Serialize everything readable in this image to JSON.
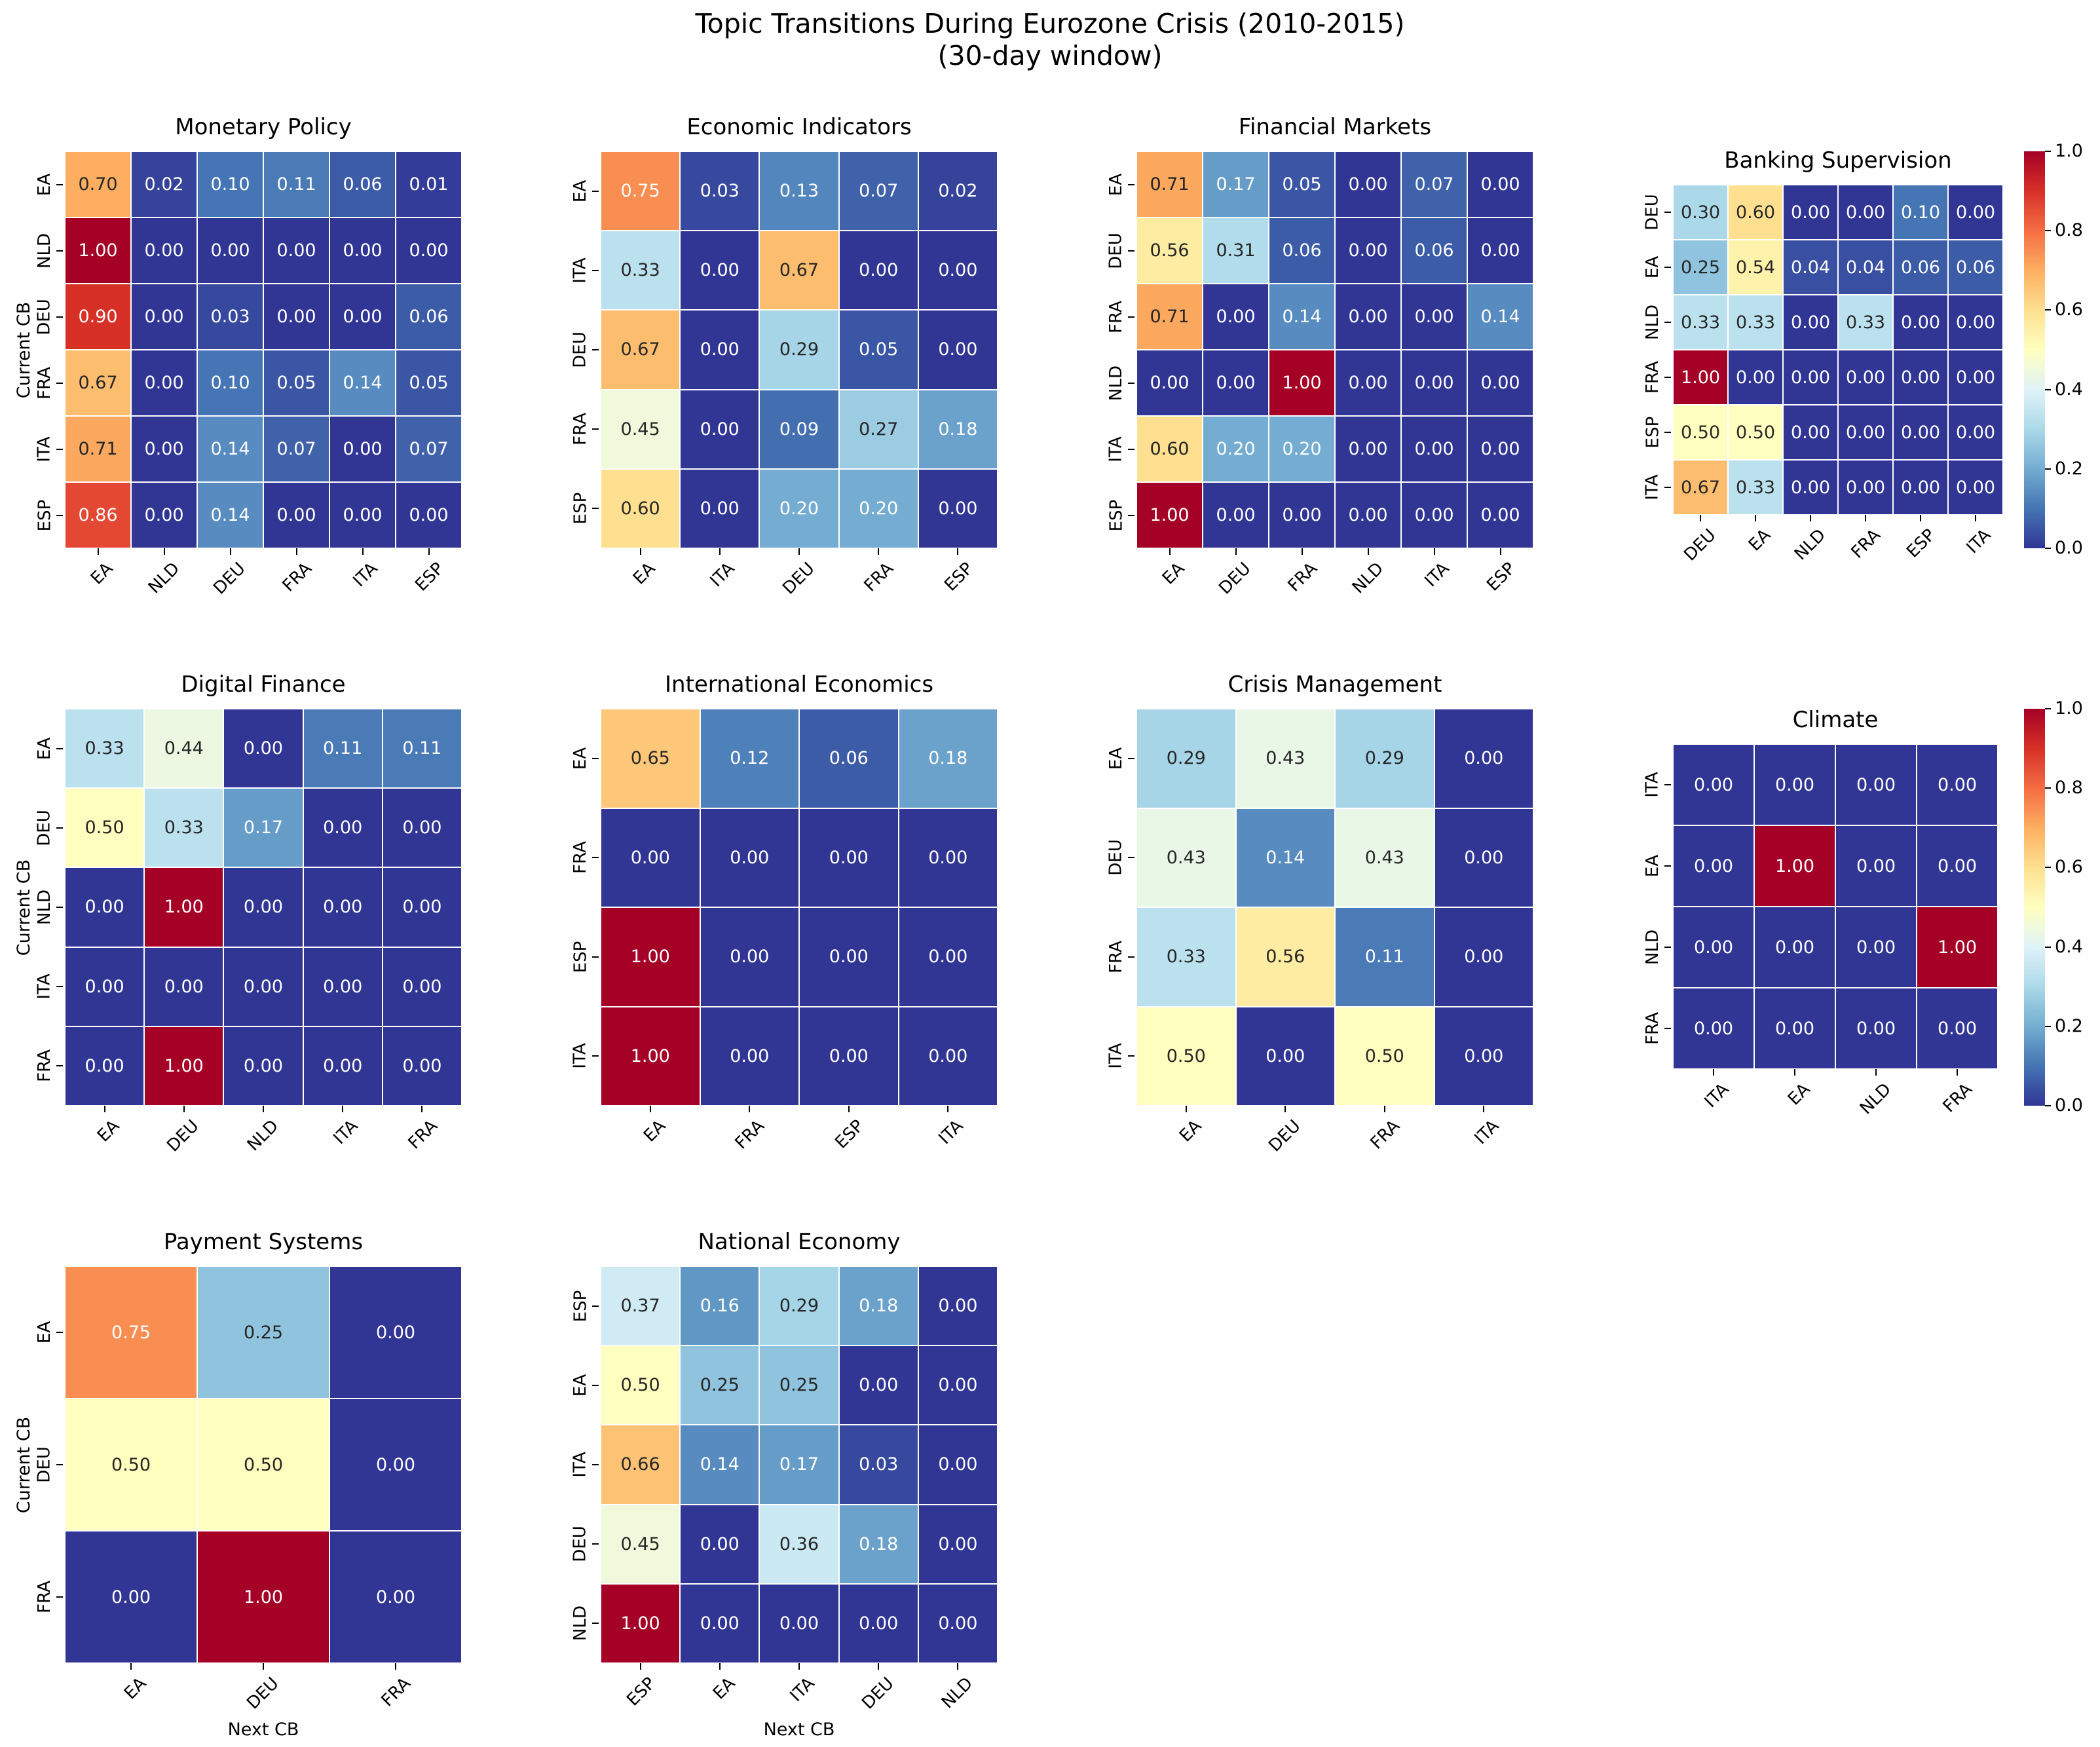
{
  "suptitle": {
    "line1": "Topic Transitions During Eurozone Crisis (2010-2015)",
    "line2": "(30-day window)"
  },
  "axis_labels": {
    "y": "Current CB",
    "x": "Next CB"
  },
  "colorbar": {
    "ticks": [
      "1.0",
      "0.8",
      "0.6",
      "0.4",
      "0.2",
      "0.0"
    ],
    "min": 0.0,
    "max": 1.0
  },
  "colormap": {
    "name": "RdYlBu_r",
    "anchors": [
      "#313695",
      "#4575b4",
      "#74add1",
      "#abd9e9",
      "#e0f3f8",
      "#ffffbf",
      "#fee090",
      "#fdae61",
      "#f46d43",
      "#d73027",
      "#a50026"
    ],
    "annot_dark_text": "#262626",
    "annot_light_text": "#ffffff"
  },
  "chart_data": [
    {
      "type": "heatmap",
      "title": "Monetary Policy",
      "rows": [
        "EA",
        "NLD",
        "DEU",
        "FRA",
        "ITA",
        "ESP"
      ],
      "cols": [
        "EA",
        "NLD",
        "DEU",
        "FRA",
        "ITA",
        "ESP"
      ],
      "values": [
        [
          0.7,
          0.02,
          0.1,
          0.11,
          0.06,
          0.01
        ],
        [
          1.0,
          0.0,
          0.0,
          0.0,
          0.0,
          0.0
        ],
        [
          0.9,
          0.0,
          0.03,
          0.0,
          0.0,
          0.06
        ],
        [
          0.67,
          0.0,
          0.1,
          0.05,
          0.14,
          0.05
        ],
        [
          0.71,
          0.0,
          0.14,
          0.07,
          0.0,
          0.07
        ],
        [
          0.86,
          0.0,
          0.14,
          0.0,
          0.0,
          0.0
        ]
      ]
    },
    {
      "type": "heatmap",
      "title": "Economic Indicators",
      "rows": [
        "EA",
        "ITA",
        "DEU",
        "FRA",
        "ESP"
      ],
      "cols": [
        "EA",
        "ITA",
        "DEU",
        "FRA",
        "ESP"
      ],
      "values": [
        [
          0.75,
          0.03,
          0.13,
          0.07,
          0.02
        ],
        [
          0.33,
          0.0,
          0.67,
          0.0,
          0.0
        ],
        [
          0.67,
          0.0,
          0.29,
          0.05,
          0.0
        ],
        [
          0.45,
          0.0,
          0.09,
          0.27,
          0.18
        ],
        [
          0.6,
          0.0,
          0.2,
          0.2,
          0.0
        ]
      ]
    },
    {
      "type": "heatmap",
      "title": "Financial Markets",
      "rows": [
        "EA",
        "DEU",
        "FRA",
        "NLD",
        "ITA",
        "ESP"
      ],
      "cols": [
        "EA",
        "DEU",
        "FRA",
        "NLD",
        "ITA",
        "ESP"
      ],
      "values": [
        [
          0.71,
          0.17,
          0.05,
          0.0,
          0.07,
          0.0
        ],
        [
          0.56,
          0.31,
          0.06,
          0.0,
          0.06,
          0.0
        ],
        [
          0.71,
          0.0,
          0.14,
          0.0,
          0.0,
          0.14
        ],
        [
          0.0,
          0.0,
          1.0,
          0.0,
          0.0,
          0.0
        ],
        [
          0.6,
          0.2,
          0.2,
          0.0,
          0.0,
          0.0
        ],
        [
          1.0,
          0.0,
          0.0,
          0.0,
          0.0,
          0.0
        ]
      ]
    },
    {
      "type": "heatmap",
      "title": "Banking Supervision",
      "rows": [
        "DEU",
        "EA",
        "NLD",
        "FRA",
        "ESP",
        "ITA"
      ],
      "cols": [
        "DEU",
        "EA",
        "NLD",
        "FRA",
        "ESP",
        "ITA"
      ],
      "values": [
        [
          0.3,
          0.6,
          0.0,
          0.0,
          0.1,
          0.0
        ],
        [
          0.25,
          0.54,
          0.04,
          0.04,
          0.06,
          0.06
        ],
        [
          0.33,
          0.33,
          0.0,
          0.33,
          0.0,
          0.0
        ],
        [
          1.0,
          0.0,
          0.0,
          0.0,
          0.0,
          0.0
        ],
        [
          0.5,
          0.5,
          0.0,
          0.0,
          0.0,
          0.0
        ],
        [
          0.67,
          0.33,
          0.0,
          0.0,
          0.0,
          0.0
        ]
      ]
    },
    {
      "type": "heatmap",
      "title": "Digital Finance",
      "rows": [
        "EA",
        "DEU",
        "NLD",
        "ITA",
        "FRA"
      ],
      "cols": [
        "EA",
        "DEU",
        "NLD",
        "ITA",
        "FRA"
      ],
      "values": [
        [
          0.33,
          0.44,
          0.0,
          0.11,
          0.11
        ],
        [
          0.5,
          0.33,
          0.17,
          0.0,
          0.0
        ],
        [
          0.0,
          1.0,
          0.0,
          0.0,
          0.0
        ],
        [
          0.0,
          0.0,
          0.0,
          0.0,
          0.0
        ],
        [
          0.0,
          1.0,
          0.0,
          0.0,
          0.0
        ]
      ]
    },
    {
      "type": "heatmap",
      "title": "International Economics",
      "rows": [
        "EA",
        "FRA",
        "ESP",
        "ITA"
      ],
      "cols": [
        "EA",
        "FRA",
        "ESP",
        "ITA"
      ],
      "values": [
        [
          0.65,
          0.12,
          0.06,
          0.18
        ],
        [
          0.0,
          0.0,
          0.0,
          0.0
        ],
        [
          1.0,
          0.0,
          0.0,
          0.0
        ],
        [
          1.0,
          0.0,
          0.0,
          0.0
        ]
      ]
    },
    {
      "type": "heatmap",
      "title": "Crisis Management",
      "rows": [
        "EA",
        "DEU",
        "FRA",
        "ITA"
      ],
      "cols": [
        "EA",
        "DEU",
        "FRA",
        "ITA"
      ],
      "values": [
        [
          0.29,
          0.43,
          0.29,
          0.0
        ],
        [
          0.43,
          0.14,
          0.43,
          0.0
        ],
        [
          0.33,
          0.56,
          0.11,
          0.0
        ],
        [
          0.5,
          0.0,
          0.5,
          0.0
        ]
      ]
    },
    {
      "type": "heatmap",
      "title": "Climate",
      "rows": [
        "ITA",
        "EA",
        "NLD",
        "FRA"
      ],
      "cols": [
        "ITA",
        "EA",
        "NLD",
        "FRA"
      ],
      "values": [
        [
          0.0,
          0.0,
          0.0,
          0.0
        ],
        [
          0.0,
          1.0,
          0.0,
          0.0
        ],
        [
          0.0,
          0.0,
          0.0,
          1.0
        ],
        [
          0.0,
          0.0,
          0.0,
          0.0
        ]
      ]
    },
    {
      "type": "heatmap",
      "title": "Payment Systems",
      "rows": [
        "EA",
        "DEU",
        "FRA"
      ],
      "cols": [
        "EA",
        "DEU",
        "FRA"
      ],
      "values": [
        [
          0.75,
          0.25,
          0.0
        ],
        [
          0.5,
          0.5,
          0.0
        ],
        [
          0.0,
          1.0,
          0.0
        ]
      ]
    },
    {
      "type": "heatmap",
      "title": "National Economy",
      "rows": [
        "ESP",
        "EA",
        "ITA",
        "DEU",
        "NLD"
      ],
      "cols": [
        "ESP",
        "EA",
        "ITA",
        "DEU",
        "NLD"
      ],
      "values": [
        [
          0.37,
          0.16,
          0.29,
          0.18,
          0.0
        ],
        [
          0.5,
          0.25,
          0.25,
          0.0,
          0.0
        ],
        [
          0.66,
          0.14,
          0.17,
          0.03,
          0.0
        ],
        [
          0.45,
          0.0,
          0.36,
          0.18,
          0.0
        ],
        [
          1.0,
          0.0,
          0.0,
          0.0,
          0.0
        ]
      ]
    }
  ]
}
